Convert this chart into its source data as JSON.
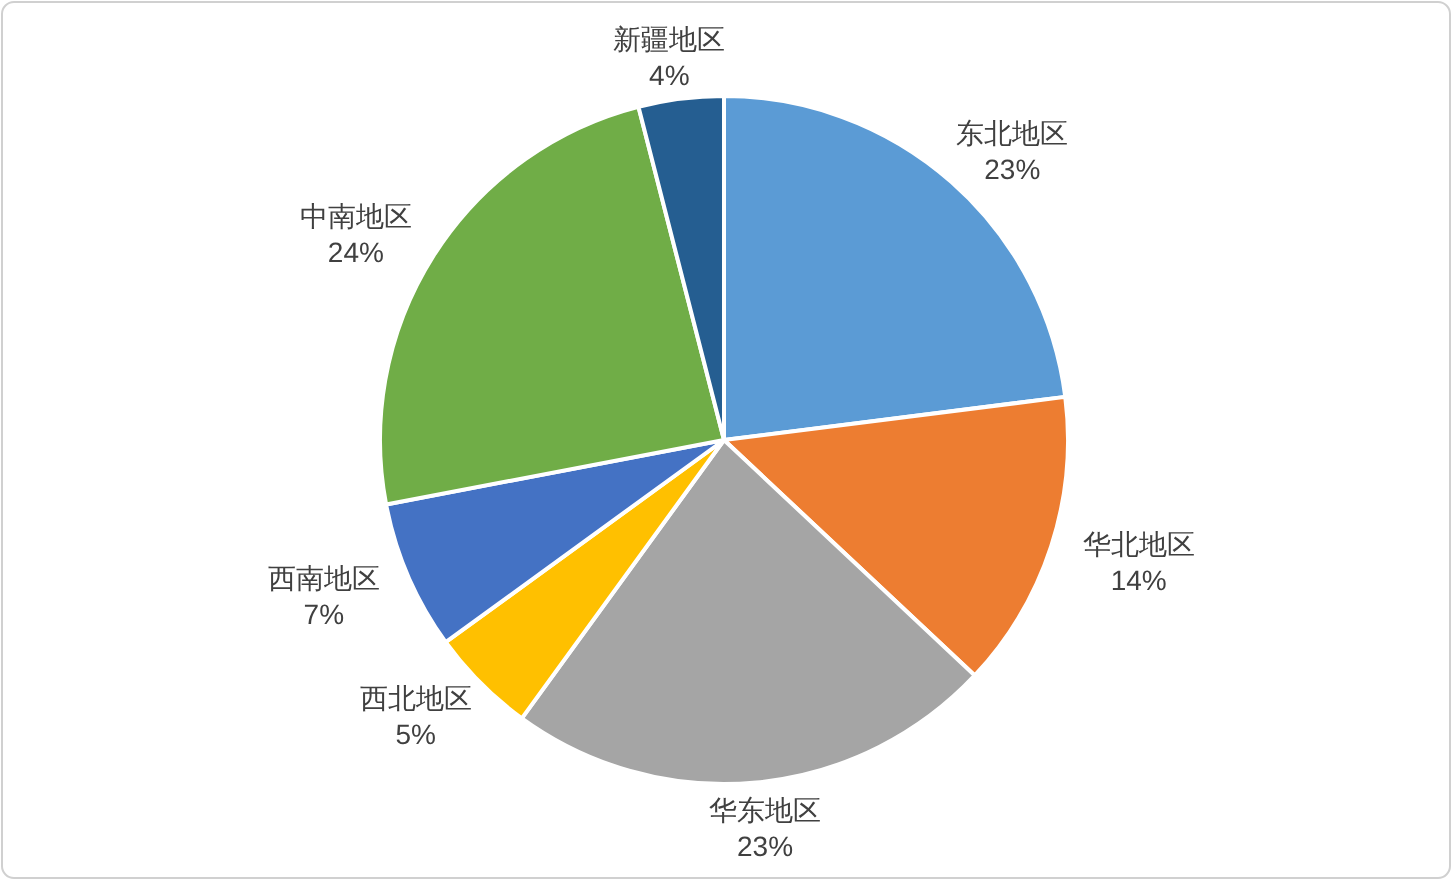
{
  "chart_data": {
    "type": "pie",
    "categories": [
      "东北地区",
      "华北地区",
      "华东地区",
      "西北地区",
      "西南地区",
      "中南地区",
      "新疆地区"
    ],
    "values": [
      23,
      14,
      23,
      5,
      7,
      24,
      4
    ],
    "value_labels": [
      "23%",
      "14%",
      "23%",
      "5%",
      "7%",
      "24%",
      "4%"
    ],
    "colors": [
      "#5b9bd5",
      "#ed7d31",
      "#a5a5a5",
      "#ffc000",
      "#4472c4",
      "#70ad47",
      "#255e91"
    ]
  }
}
